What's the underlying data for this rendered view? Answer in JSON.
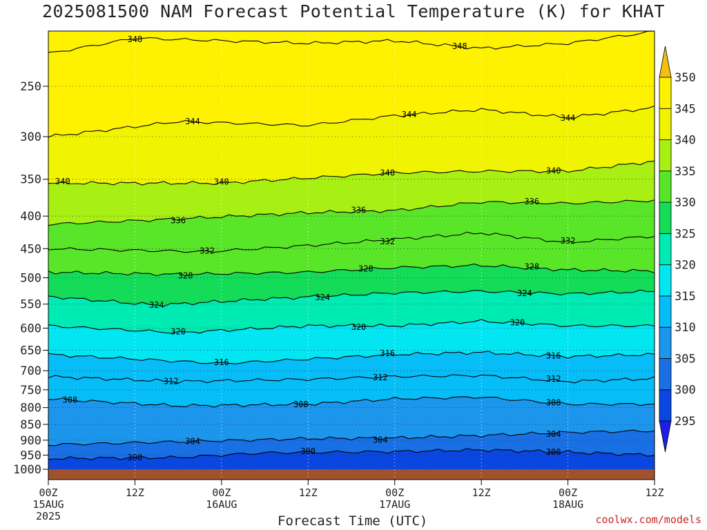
{
  "title": "2025081500 NAM Forecast Potential Temperature (K) for KHAT",
  "credit": "coolwx.com/models",
  "chart_data": {
    "type": "heatmap",
    "title": "2025081500 NAM Forecast Potential Temperature (K) for KHAT",
    "xlabel": "Forecast Time (UTC)",
    "ylabel": "",
    "x_ticks": [
      {
        "hour": 0,
        "label": "00Z",
        "sub": "15AUG",
        "sub2": "2025"
      },
      {
        "hour": 12,
        "label": "12Z",
        "sub": "",
        "sub2": ""
      },
      {
        "hour": 24,
        "label": "00Z",
        "sub": "16AUG",
        "sub2": ""
      },
      {
        "hour": 36,
        "label": "12Z",
        "sub": "",
        "sub2": ""
      },
      {
        "hour": 48,
        "label": "00Z",
        "sub": "17AUG",
        "sub2": ""
      },
      {
        "hour": 60,
        "label": "12Z",
        "sub": "",
        "sub2": ""
      },
      {
        "hour": 72,
        "label": "00Z",
        "sub": "18AUG",
        "sub2": ""
      },
      {
        "hour": 84,
        "label": "12Z",
        "sub": "",
        "sub2": ""
      }
    ],
    "xlim": [
      0,
      84
    ],
    "y_ticks": [
      250,
      300,
      350,
      400,
      450,
      500,
      550,
      600,
      650,
      700,
      750,
      800,
      850,
      900,
      950,
      1000
    ],
    "ylim": [
      200,
      1013
    ],
    "grid": true,
    "colorbar": {
      "levels": [
        295,
        300,
        305,
        310,
        315,
        320,
        325,
        330,
        335,
        340,
        345,
        350
      ],
      "colors": [
        "#1e1ee6",
        "#0a46e0",
        "#1870e4",
        "#1c96ec",
        "#06bdf8",
        "#02e6f2",
        "#00eab4",
        "#14dc58",
        "#5ae628",
        "#a8f014",
        "#f0f400",
        "#fff200",
        "#f4c010"
      ]
    },
    "contours": [
      {
        "value": 300,
        "profile": [
          {
            "hour": 0,
            "p": 962
          },
          {
            "hour": 18,
            "p": 958
          },
          {
            "hour": 30,
            "p": 942
          },
          {
            "hour": 48,
            "p": 938
          },
          {
            "hour": 60,
            "p": 932
          },
          {
            "hour": 72,
            "p": 940
          },
          {
            "hour": 84,
            "p": 950
          }
        ],
        "labels": [
          12,
          36,
          70
        ]
      },
      {
        "value": 304,
        "profile": [
          {
            "hour": 0,
            "p": 915
          },
          {
            "hour": 18,
            "p": 905
          },
          {
            "hour": 36,
            "p": 895
          },
          {
            "hour": 48,
            "p": 893
          },
          {
            "hour": 60,
            "p": 885
          },
          {
            "hour": 72,
            "p": 875
          },
          {
            "hour": 84,
            "p": 870
          }
        ],
        "labels": [
          20,
          46,
          70
        ]
      },
      {
        "value": 308,
        "profile": [
          {
            "hour": 0,
            "p": 775
          },
          {
            "hour": 18,
            "p": 795
          },
          {
            "hour": 36,
            "p": 790
          },
          {
            "hour": 48,
            "p": 775
          },
          {
            "hour": 60,
            "p": 770
          },
          {
            "hour": 72,
            "p": 790
          },
          {
            "hour": 84,
            "p": 790
          }
        ],
        "labels": [
          3,
          35,
          70
        ]
      },
      {
        "value": 312,
        "profile": [
          {
            "hour": 0,
            "p": 715
          },
          {
            "hour": 18,
            "p": 728
          },
          {
            "hour": 36,
            "p": 722
          },
          {
            "hour": 48,
            "p": 715
          },
          {
            "hour": 60,
            "p": 712
          },
          {
            "hour": 72,
            "p": 728
          },
          {
            "hour": 84,
            "p": 720
          }
        ],
        "labels": [
          17,
          46,
          70
        ]
      },
      {
        "value": 316,
        "profile": [
          {
            "hour": 0,
            "p": 660
          },
          {
            "hour": 24,
            "p": 682
          },
          {
            "hour": 48,
            "p": 660
          },
          {
            "hour": 60,
            "p": 655
          },
          {
            "hour": 72,
            "p": 665
          },
          {
            "hour": 84,
            "p": 660
          }
        ],
        "labels": [
          24,
          47,
          70
        ]
      },
      {
        "value": 320,
        "profile": [
          {
            "hour": 0,
            "p": 595
          },
          {
            "hour": 18,
            "p": 610
          },
          {
            "hour": 36,
            "p": 595
          },
          {
            "hour": 48,
            "p": 595
          },
          {
            "hour": 60,
            "p": 585
          },
          {
            "hour": 72,
            "p": 595
          },
          {
            "hour": 84,
            "p": 595
          }
        ],
        "labels": [
          18,
          43,
          65
        ]
      },
      {
        "value": 324,
        "profile": [
          {
            "hour": 0,
            "p": 535
          },
          {
            "hour": 15,
            "p": 552
          },
          {
            "hour": 30,
            "p": 540
          },
          {
            "hour": 48,
            "p": 528
          },
          {
            "hour": 60,
            "p": 525
          },
          {
            "hour": 72,
            "p": 530
          },
          {
            "hour": 84,
            "p": 525
          }
        ],
        "labels": [
          15,
          38,
          66
        ]
      },
      {
        "value": 328,
        "profile": [
          {
            "hour": 0,
            "p": 490
          },
          {
            "hour": 18,
            "p": 494
          },
          {
            "hour": 36,
            "p": 490
          },
          {
            "hour": 48,
            "p": 482
          },
          {
            "hour": 60,
            "p": 478
          },
          {
            "hour": 72,
            "p": 486
          },
          {
            "hour": 84,
            "p": 488
          }
        ],
        "labels": [
          19,
          44,
          67
        ]
      },
      {
        "value": 332,
        "profile": [
          {
            "hour": 0,
            "p": 450
          },
          {
            "hour": 22,
            "p": 455
          },
          {
            "hour": 36,
            "p": 445
          },
          {
            "hour": 48,
            "p": 435
          },
          {
            "hour": 60,
            "p": 425
          },
          {
            "hour": 72,
            "p": 440
          },
          {
            "hour": 84,
            "p": 430
          }
        ],
        "labels": [
          22,
          47,
          72
        ]
      },
      {
        "value": 336,
        "profile": [
          {
            "hour": 0,
            "p": 412
          },
          {
            "hour": 18,
            "p": 404
          },
          {
            "hour": 36,
            "p": 395
          },
          {
            "hour": 48,
            "p": 392
          },
          {
            "hour": 60,
            "p": 380
          },
          {
            "hour": 72,
            "p": 382
          },
          {
            "hour": 84,
            "p": 378
          }
        ],
        "labels": [
          18,
          43,
          67
        ]
      },
      {
        "value": 340,
        "profile": [
          {
            "hour": 0,
            "p": 355
          },
          {
            "hour": 24,
            "p": 355
          },
          {
            "hour": 48,
            "p": 342
          },
          {
            "hour": 60,
            "p": 340
          },
          {
            "hour": 72,
            "p": 340
          },
          {
            "hour": 84,
            "p": 328
          }
        ],
        "labels": [
          2,
          24,
          47,
          70
        ]
      },
      {
        "value": 344,
        "profile": [
          {
            "hour": 0,
            "p": 300
          },
          {
            "hour": 18,
            "p": 284
          },
          {
            "hour": 36,
            "p": 288
          },
          {
            "hour": 48,
            "p": 278
          },
          {
            "hour": 60,
            "p": 272
          },
          {
            "hour": 72,
            "p": 280
          },
          {
            "hour": 84,
            "p": 270
          }
        ],
        "labels": [
          20,
          50,
          72
        ]
      },
      {
        "value": 348,
        "profile": [
          {
            "hour": 0,
            "p": 222
          },
          {
            "hour": 12,
            "p": 210
          },
          {
            "hour": 36,
            "p": 214
          },
          {
            "hour": 48,
            "p": 212
          },
          {
            "hour": 60,
            "p": 218
          },
          {
            "hour": 72,
            "p": 214
          },
          {
            "hour": 84,
            "p": 205
          }
        ],
        "labels": [
          12,
          57
        ]
      }
    ]
  }
}
